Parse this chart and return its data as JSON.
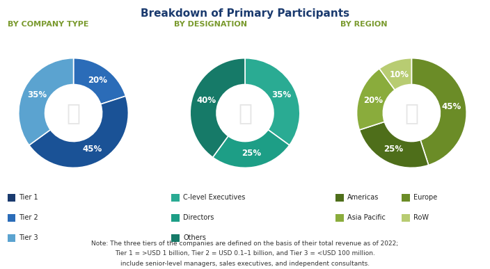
{
  "title": "Breakdown of Primary Participants",
  "subtitle1": "BY COMPANY TYPE",
  "subtitle2": "BY DESIGNATION",
  "subtitle3": "BY REGION",
  "chart1_values": [
    20,
    45,
    35
  ],
  "chart1_labels": [
    "20%",
    "45%",
    "35%"
  ],
  "chart1_colors": [
    "#2b6cb8",
    "#1a5296",
    "#5ba3d0"
  ],
  "chart1_legend": [
    "Tier 1",
    "Tier 2",
    "Tier 3"
  ],
  "chart1_legend_colors": [
    "#1a3a6e",
    "#2b6cb8",
    "#5ba3d0"
  ],
  "chart2_values": [
    35,
    25,
    40
  ],
  "chart2_labels": [
    "35%",
    "25%",
    "40%"
  ],
  "chart2_colors": [
    "#2aab93",
    "#1d9e86",
    "#167a68"
  ],
  "chart2_legend": [
    "C-level Executives",
    "Directors",
    "Others"
  ],
  "chart2_legend_colors": [
    "#2aab93",
    "#1d9e86",
    "#167a68"
  ],
  "chart3_values": [
    45,
    25,
    20,
    10
  ],
  "chart3_labels": [
    "45%",
    "25%",
    "20%",
    "10%"
  ],
  "chart3_colors": [
    "#6b8c27",
    "#4e6e1a",
    "#8aac3c",
    "#b8cc72"
  ],
  "chart3_legend": [
    "Americas",
    "Europe",
    "Asia Pacific",
    "RoW"
  ],
  "chart3_legend_colors": [
    "#4e6e1a",
    "#6b8c27",
    "#8aac3c",
    "#b8cc72"
  ],
  "note_line1": "Note: The three tiers of the companies are defined on the basis of their total revenue as of 2022;",
  "note_line2": "Tier 1 = >USD 1 billion, Tier 2 = USD 0.1–1 billion, and Tier 3 = <USD 100 million.",
  "note_line3": "include senior-level managers, sales executives, and independent consultants.",
  "bg_color": "#ffffff",
  "title_color": "#1a3a6e",
  "subtitle_color": "#7a9a2e",
  "note_color": "#333333"
}
